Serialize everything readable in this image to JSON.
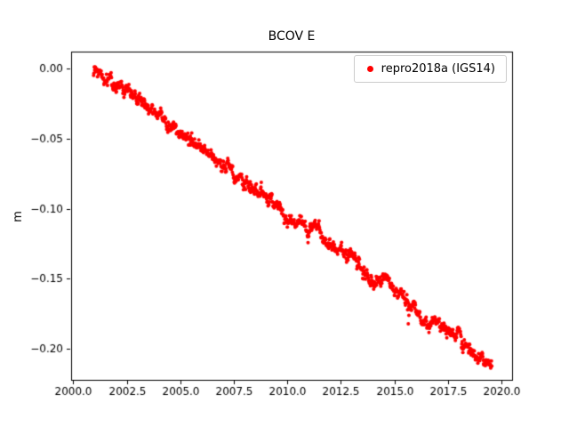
{
  "figure": {
    "background": "#ffffff",
    "axes_color": "#000000"
  },
  "chart_data": {
    "type": "scatter",
    "title": "BCOV E",
    "xlabel": "",
    "ylabel": "m",
    "xlim": [
      1999.9,
      2020.5
    ],
    "ylim": [
      -0.222,
      0.012
    ],
    "xticks": [
      2000.0,
      2002.5,
      2005.0,
      2007.5,
      2010.0,
      2012.5,
      2015.0,
      2017.5,
      2020.0
    ],
    "xtick_labels": [
      "2000.0",
      "2002.5",
      "2005.0",
      "2007.5",
      "2010.0",
      "2012.5",
      "2015.0",
      "2017.5",
      "2020.0"
    ],
    "yticks": [
      0.0,
      -0.05,
      -0.1,
      -0.15,
      -0.2
    ],
    "ytick_labels": [
      "0.00",
      "−0.05",
      "−0.10",
      "−0.15",
      "−0.20"
    ],
    "grid": false,
    "legend_position": "upper right",
    "series": [
      {
        "name": "repro2018a (IGS14)",
        "color": "#ff0000",
        "marker": "dot",
        "marker_size_px": 4,
        "trend": {
          "x_start": 2000.95,
          "y_start": 0.001,
          "x_end": 2019.55,
          "y_end": -0.21,
          "slope_m_per_yr": -0.01134
        },
        "noise_std_m": 0.0028,
        "samples_per_year": 60,
        "outliers": [
          {
            "x": 2015.62,
            "y": -0.172
          },
          {
            "x": 2015.65,
            "y": -0.182
          },
          {
            "x": 2015.68,
            "y": -0.176
          }
        ]
      }
    ]
  }
}
